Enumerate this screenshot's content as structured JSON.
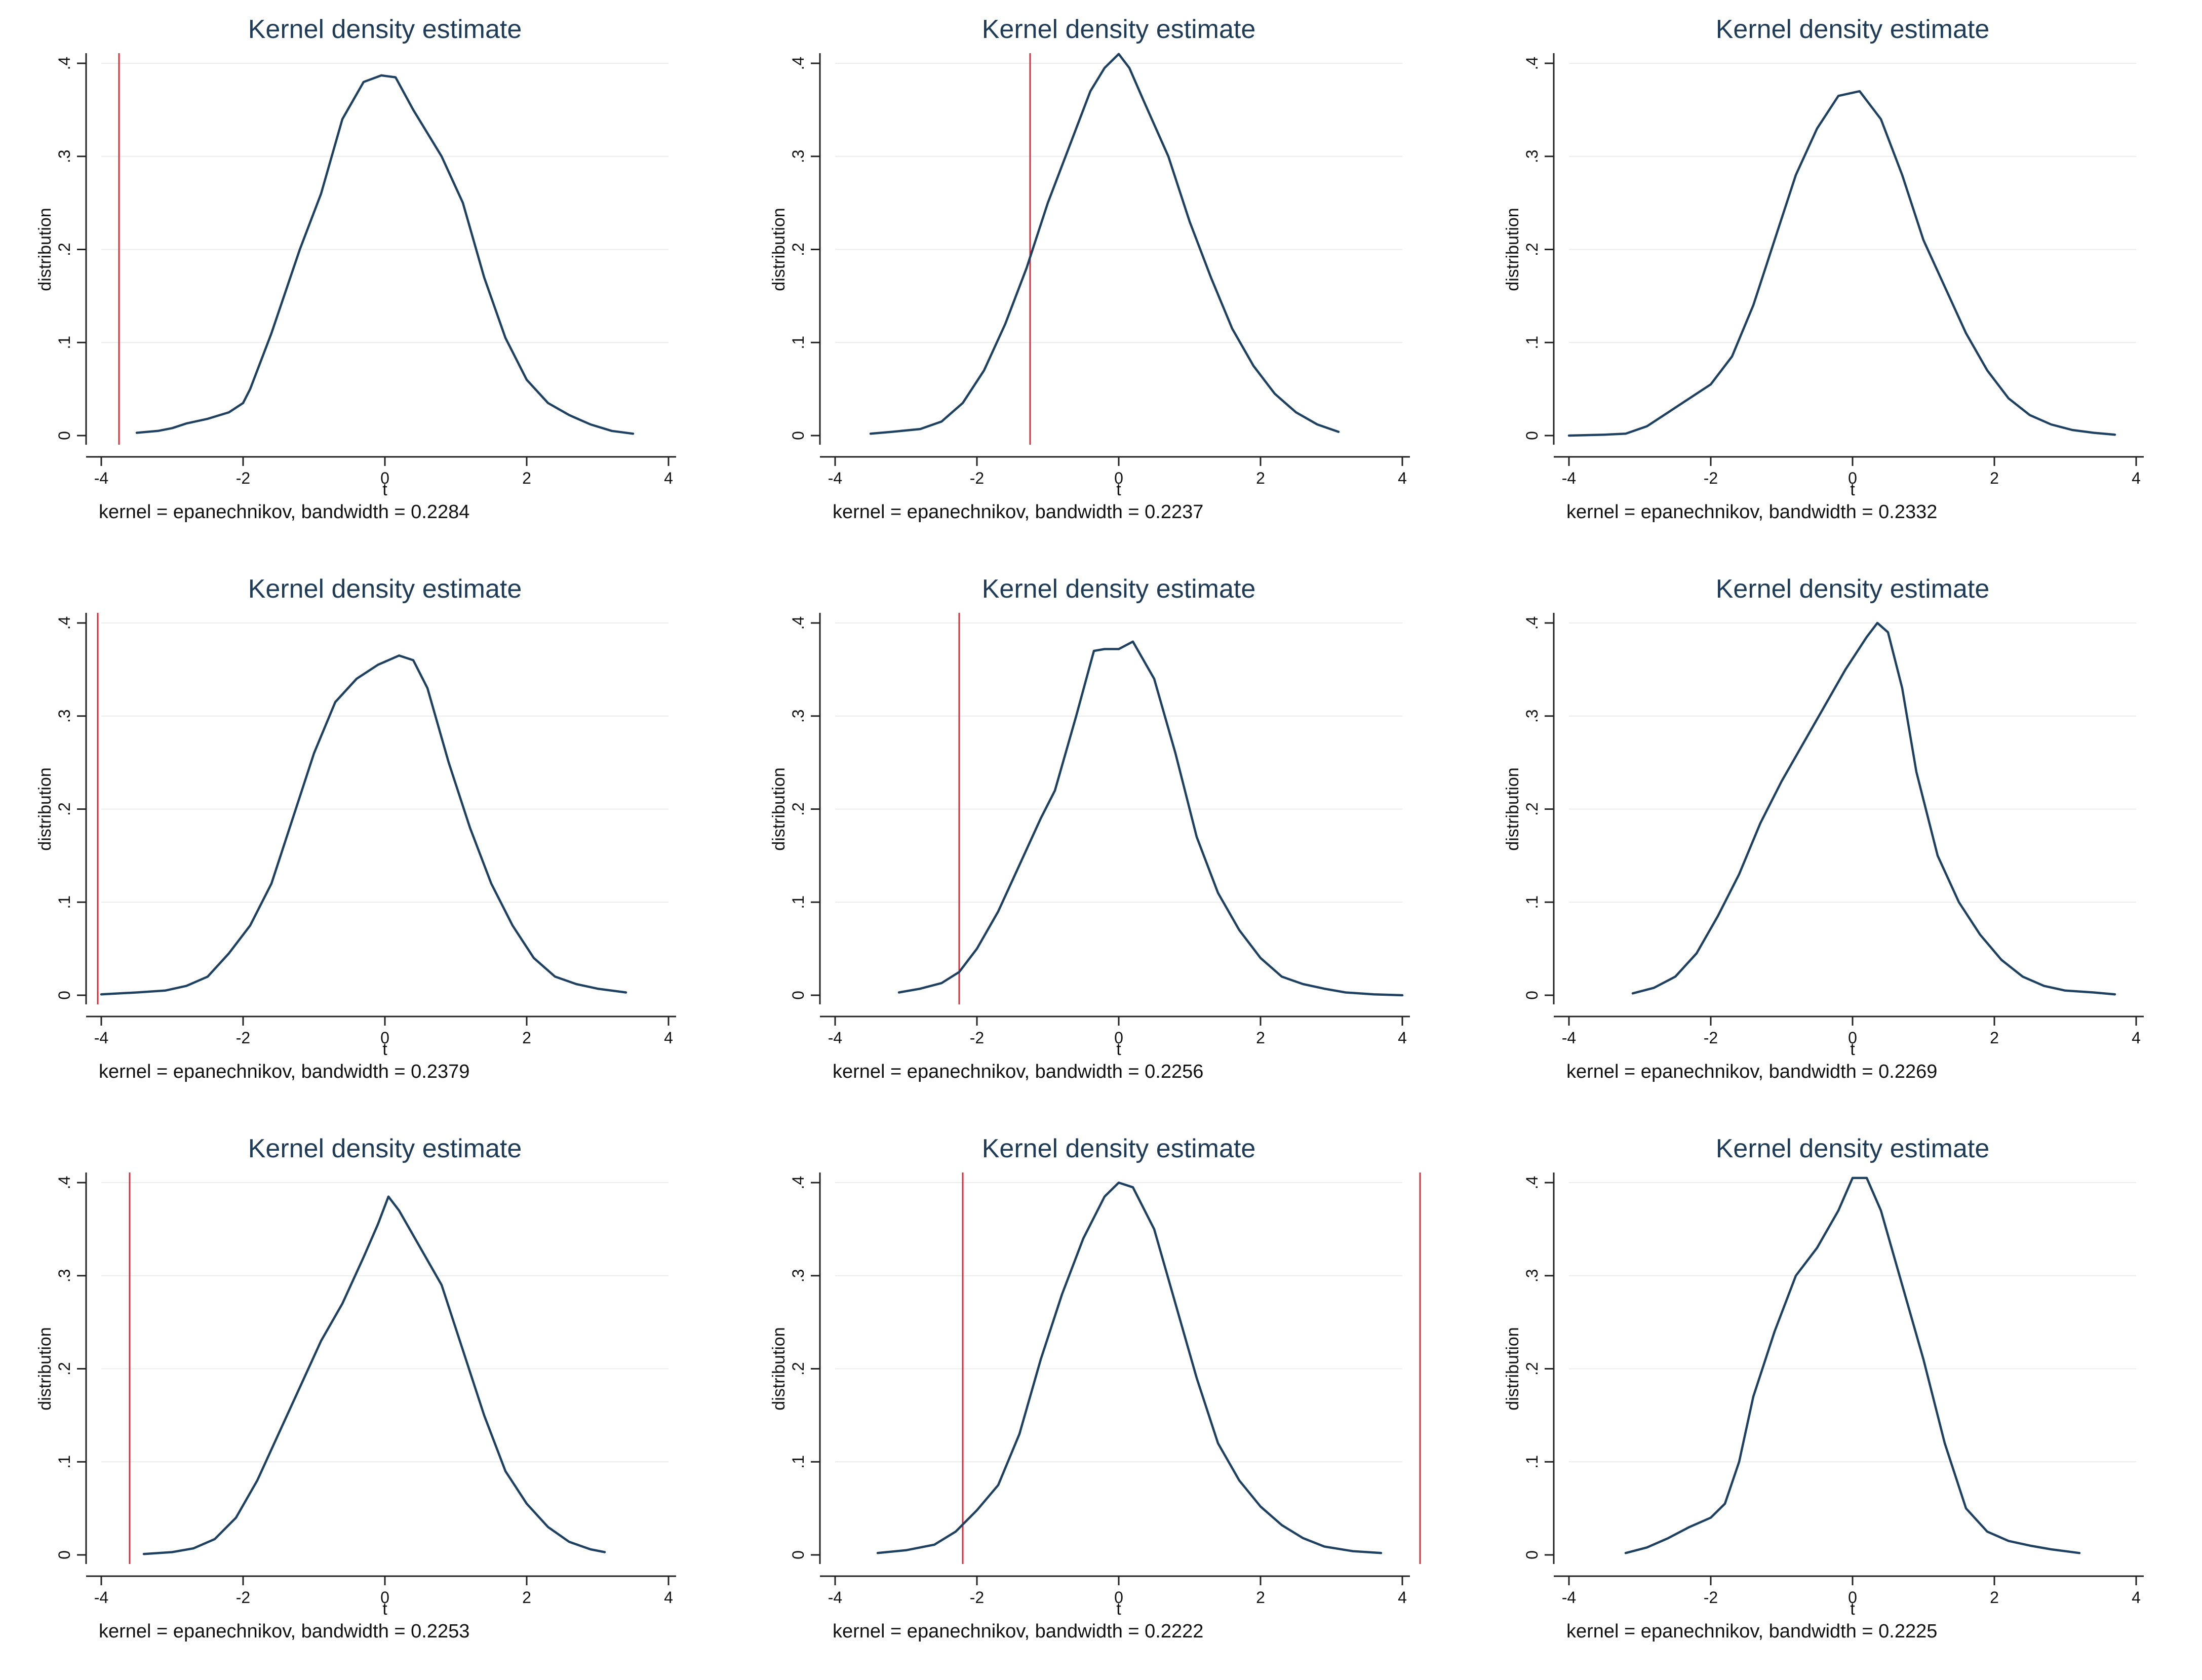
{
  "chart_data": [
    {
      "type": "line",
      "title": "Kernel density estimate",
      "xlabel": "t",
      "ylabel": "distribution",
      "note": "kernel = epanechnikov, bandwidth = 0.2284",
      "xlim": [
        -4,
        4
      ],
      "ylim": [
        0,
        0.4
      ],
      "xticks": [
        -4,
        -2,
        0,
        2,
        4
      ],
      "yticks": [
        0,
        0.1,
        0.2,
        0.3,
        0.4
      ],
      "xtick_labels": [
        "-4",
        "-2",
        "0",
        "2",
        "4"
      ],
      "ytick_labels": [
        "0",
        ".1",
        ".2",
        ".3",
        ".4"
      ],
      "ref_lines": [
        -3.75
      ],
      "series": [
        {
          "name": "density",
          "x": [
            -3.5,
            -3.2,
            -3.0,
            -2.8,
            -2.5,
            -2.2,
            -2.0,
            -1.9,
            -1.6,
            -1.2,
            -0.9,
            -0.6,
            -0.3,
            -0.05,
            0.15,
            0.4,
            0.8,
            1.1,
            1.4,
            1.7,
            2.0,
            2.3,
            2.6,
            2.9,
            3.2,
            3.5
          ],
          "y": [
            0.003,
            0.005,
            0.008,
            0.013,
            0.018,
            0.025,
            0.035,
            0.05,
            0.11,
            0.2,
            0.26,
            0.34,
            0.38,
            0.387,
            0.385,
            0.35,
            0.3,
            0.25,
            0.17,
            0.105,
            0.06,
            0.035,
            0.022,
            0.012,
            0.005,
            0.002
          ]
        }
      ]
    },
    {
      "type": "line",
      "title": "Kernel density estimate",
      "xlabel": "t",
      "ylabel": "distribution",
      "note": "kernel = epanechnikov, bandwidth = 0.2237",
      "xlim": [
        -4,
        4
      ],
      "ylim": [
        0,
        0.4
      ],
      "xticks": [
        -4,
        -2,
        0,
        2,
        4
      ],
      "yticks": [
        0,
        0.1,
        0.2,
        0.3,
        0.4
      ],
      "xtick_labels": [
        "-4",
        "-2",
        "0",
        "2",
        "4"
      ],
      "ytick_labels": [
        "0",
        ".1",
        ".2",
        ".3",
        ".4"
      ],
      "ref_lines": [
        -1.25
      ],
      "series": [
        {
          "name": "density",
          "x": [
            -3.5,
            -3.2,
            -2.8,
            -2.5,
            -2.2,
            -1.9,
            -1.6,
            -1.3,
            -1.0,
            -0.7,
            -0.4,
            -0.2,
            0.0,
            0.15,
            0.35,
            0.7,
            1.0,
            1.3,
            1.6,
            1.9,
            2.2,
            2.5,
            2.8,
            3.1
          ],
          "y": [
            0.002,
            0.004,
            0.007,
            0.015,
            0.035,
            0.07,
            0.12,
            0.18,
            0.25,
            0.31,
            0.37,
            0.395,
            0.41,
            0.395,
            0.36,
            0.3,
            0.23,
            0.17,
            0.115,
            0.075,
            0.045,
            0.025,
            0.012,
            0.004
          ]
        }
      ]
    },
    {
      "type": "line",
      "title": "Kernel density estimate",
      "xlabel": "t",
      "ylabel": "distribution",
      "note": "kernel = epanechnikov, bandwidth = 0.2332",
      "xlim": [
        -4,
        4
      ],
      "ylim": [
        0,
        0.4
      ],
      "xticks": [
        -4,
        -2,
        0,
        2,
        4
      ],
      "yticks": [
        0,
        0.1,
        0.2,
        0.3,
        0.4
      ],
      "xtick_labels": [
        "-4",
        "-2",
        "0",
        "2",
        "4"
      ],
      "ytick_labels": [
        "0",
        ".1",
        ".2",
        ".3",
        ".4"
      ],
      "ref_lines": [],
      "series": [
        {
          "name": "density",
          "x": [
            -4.0,
            -3.5,
            -3.2,
            -2.9,
            -2.6,
            -2.3,
            -2.0,
            -1.7,
            -1.4,
            -1.1,
            -0.8,
            -0.5,
            -0.2,
            0.1,
            0.4,
            0.7,
            1.0,
            1.3,
            1.6,
            1.9,
            2.2,
            2.5,
            2.8,
            3.1,
            3.4,
            3.7
          ],
          "y": [
            0.0,
            0.001,
            0.002,
            0.01,
            0.025,
            0.04,
            0.055,
            0.085,
            0.14,
            0.21,
            0.28,
            0.33,
            0.365,
            0.37,
            0.34,
            0.28,
            0.21,
            0.16,
            0.11,
            0.07,
            0.04,
            0.022,
            0.012,
            0.006,
            0.003,
            0.001
          ]
        }
      ]
    },
    {
      "type": "line",
      "title": "Kernel density estimate",
      "xlabel": "t",
      "ylabel": "distribution",
      "note": "kernel = epanechnikov, bandwidth = 0.2379",
      "xlim": [
        -4,
        4
      ],
      "ylim": [
        0,
        0.4
      ],
      "xticks": [
        -4,
        -2,
        0,
        2,
        4
      ],
      "yticks": [
        0,
        0.1,
        0.2,
        0.3,
        0.4
      ],
      "xtick_labels": [
        "-4",
        "-2",
        "0",
        "2",
        "4"
      ],
      "ytick_labels": [
        "0",
        ".1",
        ".2",
        ".3",
        ".4"
      ],
      "ref_lines": [
        -4.05
      ],
      "series": [
        {
          "name": "density",
          "x": [
            -4.0,
            -3.5,
            -3.1,
            -2.8,
            -2.5,
            -2.2,
            -1.9,
            -1.6,
            -1.3,
            -1.0,
            -0.7,
            -0.4,
            -0.1,
            0.2,
            0.4,
            0.6,
            0.9,
            1.2,
            1.5,
            1.8,
            2.1,
            2.4,
            2.7,
            3.0,
            3.4
          ],
          "y": [
            0.001,
            0.003,
            0.005,
            0.01,
            0.02,
            0.045,
            0.075,
            0.12,
            0.19,
            0.26,
            0.315,
            0.34,
            0.355,
            0.365,
            0.36,
            0.33,
            0.25,
            0.18,
            0.12,
            0.075,
            0.04,
            0.02,
            0.012,
            0.007,
            0.003
          ]
        }
      ]
    },
    {
      "type": "line",
      "title": "Kernel density estimate",
      "xlabel": "t",
      "ylabel": "distribution",
      "note": "kernel = epanechnikov, bandwidth = 0.2256",
      "xlim": [
        -4,
        4
      ],
      "ylim": [
        0,
        0.4
      ],
      "xticks": [
        -4,
        -2,
        0,
        2,
        4
      ],
      "yticks": [
        0,
        0.1,
        0.2,
        0.3,
        0.4
      ],
      "xtick_labels": [
        "-4",
        "-2",
        "0",
        "2",
        "4"
      ],
      "ytick_labels": [
        "0",
        ".1",
        ".2",
        ".3",
        ".4"
      ],
      "ref_lines": [
        -2.25
      ],
      "series": [
        {
          "name": "density",
          "x": [
            -3.1,
            -2.8,
            -2.5,
            -2.25,
            -2.0,
            -1.7,
            -1.4,
            -1.1,
            -0.9,
            -0.6,
            -0.35,
            -0.2,
            0.0,
            0.2,
            0.5,
            0.8,
            1.1,
            1.4,
            1.7,
            2.0,
            2.3,
            2.6,
            2.9,
            3.2,
            3.6,
            4.0
          ],
          "y": [
            0.003,
            0.007,
            0.013,
            0.025,
            0.05,
            0.09,
            0.14,
            0.19,
            0.22,
            0.3,
            0.37,
            0.372,
            0.372,
            0.38,
            0.34,
            0.26,
            0.17,
            0.11,
            0.07,
            0.04,
            0.02,
            0.012,
            0.007,
            0.003,
            0.001,
            0.0
          ]
        }
      ]
    },
    {
      "type": "line",
      "title": "Kernel density estimate",
      "xlabel": "t",
      "ylabel": "distribution",
      "note": "kernel = epanechnikov, bandwidth = 0.2269",
      "xlim": [
        -4,
        4
      ],
      "ylim": [
        0,
        0.4
      ],
      "xticks": [
        -4,
        -2,
        0,
        2,
        4
      ],
      "yticks": [
        0,
        0.1,
        0.2,
        0.3,
        0.4
      ],
      "xtick_labels": [
        "-4",
        "-2",
        "0",
        "2",
        "4"
      ],
      "ytick_labels": [
        "0",
        ".1",
        ".2",
        ".3",
        ".4"
      ],
      "ref_lines": [],
      "series": [
        {
          "name": "density",
          "x": [
            -3.1,
            -2.8,
            -2.5,
            -2.2,
            -1.9,
            -1.6,
            -1.3,
            -1.0,
            -0.7,
            -0.4,
            -0.1,
            0.2,
            0.35,
            0.5,
            0.7,
            0.9,
            1.2,
            1.5,
            1.8,
            2.1,
            2.4,
            2.7,
            3.0,
            3.4,
            3.7
          ],
          "y": [
            0.002,
            0.008,
            0.02,
            0.045,
            0.085,
            0.13,
            0.185,
            0.23,
            0.27,
            0.31,
            0.35,
            0.385,
            0.4,
            0.39,
            0.33,
            0.24,
            0.15,
            0.1,
            0.065,
            0.038,
            0.02,
            0.01,
            0.005,
            0.003,
            0.001
          ]
        }
      ]
    },
    {
      "type": "line",
      "title": "Kernel density estimate",
      "xlabel": "t",
      "ylabel": "distribution",
      "note": "kernel = epanechnikov, bandwidth = 0.2253",
      "xlim": [
        -4,
        4
      ],
      "ylim": [
        0,
        0.4
      ],
      "xticks": [
        -4,
        -2,
        0,
        2,
        4
      ],
      "yticks": [
        0,
        0.1,
        0.2,
        0.3,
        0.4
      ],
      "xtick_labels": [
        "-4",
        "-2",
        "0",
        "2",
        "4"
      ],
      "ytick_labels": [
        "0",
        ".1",
        ".2",
        ".3",
        ".4"
      ],
      "ref_lines": [
        -3.6
      ],
      "series": [
        {
          "name": "density",
          "x": [
            -3.4,
            -3.0,
            -2.7,
            -2.4,
            -2.1,
            -1.8,
            -1.5,
            -1.2,
            -0.9,
            -0.6,
            -0.3,
            -0.1,
            0.05,
            0.2,
            0.5,
            0.8,
            1.1,
            1.4,
            1.7,
            2.0,
            2.3,
            2.6,
            2.9,
            3.1
          ],
          "y": [
            0.001,
            0.003,
            0.007,
            0.017,
            0.04,
            0.08,
            0.13,
            0.18,
            0.23,
            0.27,
            0.32,
            0.355,
            0.385,
            0.37,
            0.33,
            0.29,
            0.22,
            0.15,
            0.09,
            0.055,
            0.03,
            0.014,
            0.006,
            0.003
          ]
        }
      ]
    },
    {
      "type": "line",
      "title": "Kernel density estimate",
      "xlabel": "t",
      "ylabel": "distribution",
      "note": "kernel = epanechnikov, bandwidth = 0.2222",
      "xlim": [
        -4,
        4
      ],
      "ylim": [
        0,
        0.4
      ],
      "xticks": [
        -4,
        -2,
        0,
        2,
        4
      ],
      "yticks": [
        0,
        0.1,
        0.2,
        0.3,
        0.4
      ],
      "xtick_labels": [
        "-4",
        "-2",
        "0",
        "2",
        "4"
      ],
      "ytick_labels": [
        "0",
        ".1",
        ".2",
        ".3",
        ".4"
      ],
      "ref_lines": [
        -2.2,
        4.25
      ],
      "series": [
        {
          "name": "density",
          "x": [
            -3.4,
            -3.0,
            -2.6,
            -2.3,
            -2.0,
            -1.7,
            -1.4,
            -1.1,
            -0.8,
            -0.5,
            -0.2,
            0.0,
            0.2,
            0.5,
            0.8,
            1.1,
            1.4,
            1.7,
            2.0,
            2.3,
            2.6,
            2.9,
            3.3,
            3.7
          ],
          "y": [
            0.002,
            0.005,
            0.011,
            0.025,
            0.048,
            0.075,
            0.13,
            0.21,
            0.28,
            0.34,
            0.385,
            0.4,
            0.395,
            0.35,
            0.27,
            0.19,
            0.12,
            0.08,
            0.052,
            0.032,
            0.018,
            0.009,
            0.004,
            0.002
          ]
        }
      ]
    },
    {
      "type": "line",
      "title": "Kernel density estimate",
      "xlabel": "t",
      "ylabel": "distribution",
      "note": "kernel = epanechnikov, bandwidth = 0.2225",
      "xlim": [
        -4,
        4
      ],
      "ylim": [
        0,
        0.4
      ],
      "xticks": [
        -4,
        -2,
        0,
        2,
        4
      ],
      "yticks": [
        0,
        0.1,
        0.2,
        0.3,
        0.4
      ],
      "xtick_labels": [
        "-4",
        "-2",
        "0",
        "2",
        "4"
      ],
      "ytick_labels": [
        "0",
        ".1",
        ".2",
        ".3",
        ".4"
      ],
      "ref_lines": [],
      "series": [
        {
          "name": "density",
          "x": [
            -3.2,
            -2.9,
            -2.6,
            -2.3,
            -2.0,
            -1.8,
            -1.6,
            -1.4,
            -1.1,
            -0.8,
            -0.5,
            -0.2,
            0.0,
            0.2,
            0.4,
            0.7,
            1.0,
            1.3,
            1.6,
            1.9,
            2.2,
            2.5,
            2.8,
            3.2
          ],
          "y": [
            0.002,
            0.008,
            0.018,
            0.03,
            0.04,
            0.055,
            0.1,
            0.17,
            0.24,
            0.3,
            0.33,
            0.37,
            0.405,
            0.405,
            0.37,
            0.29,
            0.21,
            0.12,
            0.05,
            0.025,
            0.015,
            0.01,
            0.006,
            0.002
          ]
        }
      ]
    }
  ]
}
